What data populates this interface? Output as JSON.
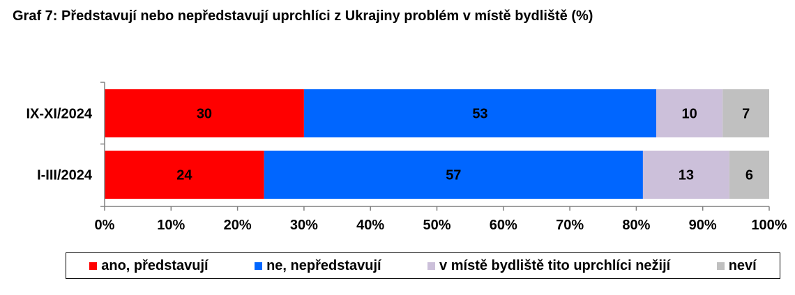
{
  "title": "Graf 7: Představují nebo nepředstavují uprchlíci z Ukrajiny problém v místě bydliště (%)",
  "chart_data": {
    "type": "bar",
    "orientation": "horizontal",
    "stacked": true,
    "title": "Graf 7: Představují nebo nepředstavují uprchlíci z Ukrajiny problém v místě bydliště (%)",
    "categories": [
      "IX-XI/2024",
      "I-III/2024"
    ],
    "series": [
      {
        "name": "ano, představují",
        "color": "#ff0000",
        "values": [
          30,
          24
        ]
      },
      {
        "name": "ne, nepředstavují",
        "color": "#0066ff",
        "values": [
          53,
          57
        ]
      },
      {
        "name": "v místě bydliště tito uprchlíci nežijí",
        "color": "#ccc0da",
        "values": [
          10,
          13
        ]
      },
      {
        "name": "neví",
        "color": "#c0c0c0",
        "values": [
          7,
          6
        ]
      }
    ],
    "xlim": [
      0,
      100
    ],
    "xticks": [
      "0%",
      "10%",
      "20%",
      "30%",
      "40%",
      "50%",
      "60%",
      "70%",
      "80%",
      "90%",
      "100%"
    ],
    "grid": false,
    "legend_position": "bottom"
  }
}
